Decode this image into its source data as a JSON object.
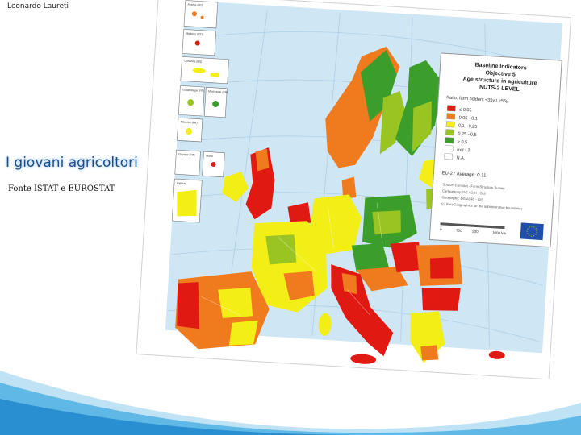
{
  "header": {
    "author": "Leonardo Laureti"
  },
  "slide": {
    "title": "I giovani agricoltori",
    "source": "Fonte ISTAT e EUROSTAT"
  },
  "map": {
    "legend": {
      "title": [
        "Baseline Indicators",
        "Objective 5",
        "Age structure in agriculture",
        "NUTS-2 LEVEL"
      ],
      "ratio_label": "Ratio: farm holders <35y / >55y",
      "classes": [
        {
          "label": "≤ 0,05",
          "color": "#e01a12"
        },
        {
          "label": "0,05 - 0,1",
          "color": "#f07a1e"
        },
        {
          "label": "0,1 - 0,25",
          "color": "#f2ee16"
        },
        {
          "label": "0,25 - 0,5",
          "color": "#9ac421"
        },
        {
          "label": "> 0,5",
          "color": "#3c9e2a"
        },
        {
          "label": "exit L2",
          "color": "#ffffff"
        },
        {
          "label": "N.A.",
          "color": "#ffffff"
        }
      ],
      "average": "EU-27 Average: 0.11",
      "notes": [
        "Source: Eurostat - Farm Structure Survey",
        "Cartography: DG AGRI - GIS",
        "Geography: DG AGRI - GIS",
        "(c) EuroGeographics for the administrative boundaries"
      ],
      "scale": [
        "0",
        "750",
        "500",
        "1000 km"
      ]
    },
    "inset_labels": [
      "Açores (PT)",
      "Madeira (PT)",
      "Canarias (ES)",
      "Guadeloupe (FR)",
      "Martinique (FR)",
      "Réunion (FR)",
      "Guyane (FR)",
      "Malta",
      "Cyprus"
    ]
  }
}
